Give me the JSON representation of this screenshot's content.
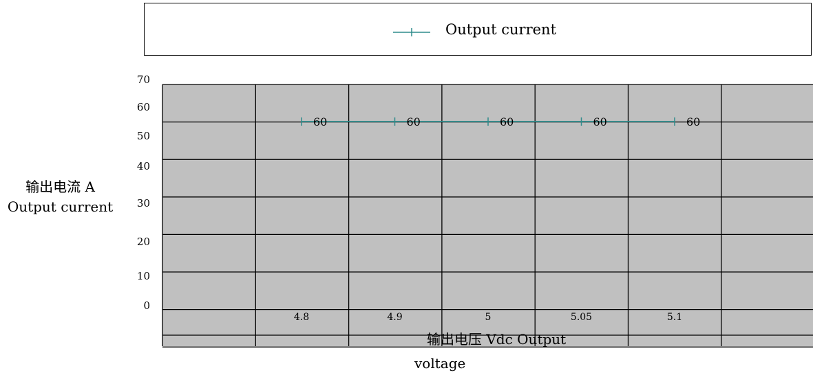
{
  "chart_data": {
    "type": "line",
    "categories": [
      "4.8",
      "4.9",
      "5",
      "5.05",
      "5.1"
    ],
    "series": [
      {
        "name": "Output current",
        "values": [
          60,
          60,
          60,
          60,
          60
        ],
        "color": "#2e8b8b",
        "marker": "+"
      }
    ],
    "data_labels": [
      "60",
      "60",
      "60",
      "60",
      "60"
    ],
    "y_ticks": [
      "70",
      "60",
      "50",
      "40",
      "30",
      "20",
      "10",
      "0"
    ],
    "ylim": [
      0,
      70
    ],
    "ylabel_line1": "输出电流 A",
    "ylabel_line2": "Output current",
    "xlabel_line1": "输出电压 Vdc Output",
    "xlabel_line2": "voltage",
    "legend_label": "Output current",
    "legend_position": "top",
    "grid": true,
    "plot_background": "#c0c0c0",
    "grid_color": "#000000"
  }
}
